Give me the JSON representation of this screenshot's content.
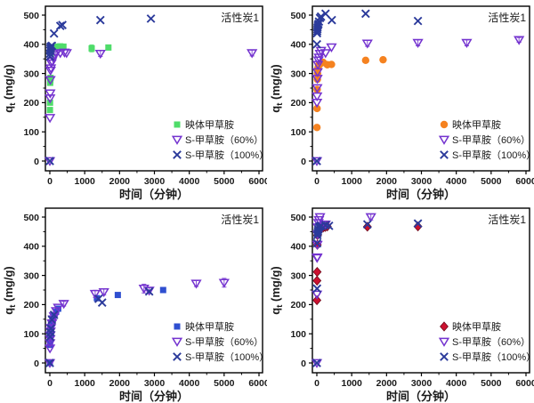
{
  "figure": {
    "background": "#ffffff"
  },
  "chart_data": [
    {
      "id": "top-left",
      "type": "scatter",
      "title": "活性炭1",
      "xlabel": "时间（分钟）",
      "ylabel": "q_t (mg/g)",
      "xlim": [
        0,
        6000
      ],
      "ylim": [
        0,
        500
      ],
      "xticks": [
        0,
        1000,
        2000,
        3000,
        4000,
        5000,
        6000
      ],
      "yticks": [
        0,
        100,
        200,
        300,
        400,
        500
      ],
      "x_minor_step": 500,
      "y_minor_step": 50,
      "grid": false,
      "legend_position": "bottom-right",
      "series": [
        {
          "name": "映体甲草胺",
          "marker": "square",
          "color": "#4fdc6a",
          "points": [
            [
              3,
              175
            ],
            [
              6,
              200
            ],
            [
              10,
              268
            ],
            [
              15,
              278
            ],
            [
              20,
              285
            ],
            [
              30,
              370
            ],
            [
              45,
              380
            ],
            [
              60,
              385
            ],
            [
              90,
              388
            ],
            [
              120,
              390
            ],
            [
              240,
              392
            ],
            [
              300,
              393
            ],
            [
              390,
              392
            ],
            [
              1200,
              386,
              12
            ],
            [
              1680,
              389
            ]
          ]
        },
        {
          "name": "S-甲草胺（60%）",
          "marker": "triangle-open",
          "color": "#7433cf",
          "points": [
            [
              0,
              0
            ],
            [
              3,
              148
            ],
            [
              6,
              215
            ],
            [
              10,
              232
            ],
            [
              15,
              278
            ],
            [
              20,
              310
            ],
            [
              30,
              318
            ],
            [
              45,
              335
            ],
            [
              60,
              342
            ],
            [
              90,
              355
            ],
            [
              120,
              362
            ],
            [
              180,
              368
            ],
            [
              300,
              370
            ],
            [
              420,
              372
            ],
            [
              480,
              370
            ],
            [
              1450,
              368,
              10
            ],
            [
              5800,
              370,
              10
            ]
          ]
        },
        {
          "name": "S-甲草胺（100%）",
          "marker": "x",
          "color": "#2b3a9b",
          "points": [
            [
              0,
              0
            ],
            [
              3,
              358
            ],
            [
              6,
              368
            ],
            [
              10,
              378
            ],
            [
              15,
              385
            ],
            [
              20,
              390
            ],
            [
              30,
              393
            ],
            [
              60,
              395
            ],
            [
              120,
              437
            ],
            [
              300,
              463
            ],
            [
              360,
              466
            ],
            [
              1450,
              483
            ],
            [
              2900,
              488
            ]
          ]
        }
      ]
    },
    {
      "id": "top-right",
      "type": "scatter",
      "title": "活性炭1",
      "xlabel": "时间（分钟）",
      "ylabel": "q_t (mg/g)",
      "xlim": [
        0,
        6000
      ],
      "ylim": [
        0,
        500
      ],
      "xticks": [
        0,
        1000,
        2000,
        3000,
        4000,
        5000,
        6000
      ],
      "yticks": [
        0,
        100,
        200,
        300,
        400,
        500
      ],
      "x_minor_step": 500,
      "y_minor_step": 50,
      "grid": false,
      "legend_position": "bottom-right",
      "series": [
        {
          "name": "映体甲草胺",
          "marker": "circle",
          "color": "#f58220",
          "points": [
            [
              3,
              115
            ],
            [
              6,
              180
            ],
            [
              10,
              245
            ],
            [
              15,
              280
            ],
            [
              20,
              300
            ],
            [
              30,
              318
            ],
            [
              45,
              325
            ],
            [
              60,
              330
            ],
            [
              90,
              333
            ],
            [
              120,
              335
            ],
            [
              180,
              338
            ],
            [
              300,
              330
            ],
            [
              420,
              331
            ],
            [
              1400,
              345,
              8
            ],
            [
              1900,
              347
            ]
          ]
        },
        {
          "name": "S-甲草胺（60%）",
          "marker": "triangle-open",
          "color": "#7433cf",
          "points": [
            [
              0,
              0
            ],
            [
              3,
              200
            ],
            [
              6,
              222
            ],
            [
              10,
              250
            ],
            [
              15,
              282
            ],
            [
              20,
              305
            ],
            [
              30,
              330
            ],
            [
              45,
              345
            ],
            [
              60,
              355
            ],
            [
              90,
              368
            ],
            [
              120,
              378
            ],
            [
              250,
              370
            ],
            [
              420,
              390
            ],
            [
              1450,
              403,
              10
            ],
            [
              2900,
              405,
              10
            ],
            [
              4300,
              405,
              10
            ],
            [
              5800,
              415,
              8
            ]
          ]
        },
        {
          "name": "S-甲草胺（100%）",
          "marker": "x",
          "color": "#2b3a9b",
          "points": [
            [
              0,
              0
            ],
            [
              3,
              400
            ],
            [
              6,
              438
            ],
            [
              10,
              445
            ],
            [
              15,
              452
            ],
            [
              20,
              458
            ],
            [
              30,
              465
            ],
            [
              45,
              470
            ],
            [
              60,
              478
            ],
            [
              90,
              490
            ],
            [
              120,
              495
            ],
            [
              250,
              505
            ],
            [
              430,
              483
            ],
            [
              1400,
              505
            ],
            [
              2900,
              480
            ]
          ]
        }
      ]
    },
    {
      "id": "bottom-left",
      "type": "scatter",
      "title": "活性炭1",
      "xlabel": "时间（分钟）",
      "ylabel": "q_t (mg/g)",
      "xlim": [
        0,
        6000
      ],
      "ylim": [
        0,
        500
      ],
      "xticks": [
        0,
        1000,
        2000,
        3000,
        4000,
        5000,
        6000
      ],
      "yticks": [
        0,
        100,
        200,
        300,
        400,
        500
      ],
      "x_minor_step": 500,
      "y_minor_step": 50,
      "grid": false,
      "legend_position": "bottom-right",
      "series": [
        {
          "name": "映体甲草胺",
          "marker": "square",
          "color": "#2f4fd0",
          "points": [
            [
              0,
              0
            ],
            [
              3,
              62
            ],
            [
              6,
              75
            ],
            [
              10,
              88
            ],
            [
              15,
              100
            ],
            [
              20,
              112
            ],
            [
              30,
              125
            ],
            [
              60,
              140
            ],
            [
              90,
              152
            ],
            [
              120,
              163
            ],
            [
              180,
              175
            ],
            [
              240,
              186
            ],
            [
              1350,
              222
            ],
            [
              1950,
              233
            ],
            [
              3250,
              250
            ]
          ]
        },
        {
          "name": "S-甲草胺（60%）",
          "marker": "triangle-open",
          "color": "#7433cf",
          "points": [
            [
              0,
              0
            ],
            [
              3,
              50
            ],
            [
              6,
              68
            ],
            [
              10,
              82
            ],
            [
              15,
              95
            ],
            [
              20,
              108
            ],
            [
              30,
              120
            ],
            [
              60,
              136
            ],
            [
              90,
              150
            ],
            [
              120,
              160
            ],
            [
              180,
              178
            ],
            [
              240,
              190
            ],
            [
              400,
              203,
              8
            ],
            [
              1300,
              237,
              12
            ],
            [
              1550,
              243,
              10
            ],
            [
              2700,
              255,
              15
            ],
            [
              2850,
              248,
              10
            ],
            [
              4200,
              272,
              10
            ],
            [
              5000,
              275,
              15
            ]
          ]
        },
        {
          "name": "S-甲草胺（100%）",
          "marker": "x",
          "color": "#2b3a9b",
          "points": [
            [
              0,
              0
            ],
            [
              10,
              90
            ],
            [
              20,
              105
            ],
            [
              30,
              118
            ],
            [
              60,
              148
            ],
            [
              120,
              165
            ],
            [
              1400,
              220
            ],
            [
              1500,
              207
            ],
            [
              2850,
              245
            ]
          ]
        }
      ]
    },
    {
      "id": "bottom-right",
      "type": "scatter",
      "title": "活性炭1",
      "xlabel": "时间（分钟）",
      "ylabel": "q_t (mg/g)",
      "xlim": [
        0,
        6000
      ],
      "ylim": [
        0,
        500
      ],
      "xticks": [
        0,
        1000,
        2000,
        3000,
        4000,
        5000,
        6000
      ],
      "yticks": [
        0,
        100,
        200,
        300,
        400,
        500
      ],
      "x_minor_step": 500,
      "y_minor_step": 50,
      "grid": false,
      "legend_position": "bottom-right",
      "series": [
        {
          "name": "映体甲草胺",
          "marker": "diamond",
          "color": "#cc1230",
          "points": [
            [
              3,
              215
            ],
            [
              6,
              282
            ],
            [
              10,
              312
            ],
            [
              15,
              405
            ],
            [
              20,
              438
            ],
            [
              30,
              448
            ],
            [
              45,
              455
            ],
            [
              60,
              458
            ],
            [
              90,
              460
            ],
            [
              120,
              462
            ],
            [
              180,
              464
            ],
            [
              240,
              466
            ],
            [
              300,
              468
            ],
            [
              1450,
              467
            ],
            [
              2900,
              468
            ]
          ]
        },
        {
          "name": "S-甲草胺（60%）",
          "marker": "triangle-open",
          "color": "#7433cf",
          "points": [
            [
              0,
              0
            ],
            [
              3,
              235
            ],
            [
              6,
              360
            ],
            [
              10,
              362
            ],
            [
              15,
              405
            ],
            [
              20,
              440
            ],
            [
              30,
              465
            ],
            [
              45,
              480
            ],
            [
              60,
              490
            ],
            [
              90,
              500
            ],
            [
              120,
              470
            ],
            [
              250,
              475
            ],
            [
              1550,
              500,
              10
            ]
          ]
        },
        {
          "name": "S-甲草胺（100%）",
          "marker": "x",
          "color": "#2b3a9b",
          "points": [
            [
              0,
              0
            ],
            [
              6,
              255
            ],
            [
              10,
              410
            ],
            [
              15,
              438
            ],
            [
              20,
              445
            ],
            [
              30,
              452
            ],
            [
              45,
              458
            ],
            [
              60,
              465
            ],
            [
              90,
              468
            ],
            [
              120,
              470
            ],
            [
              250,
              472
            ],
            [
              350,
              470
            ],
            [
              1450,
              475
            ],
            [
              2900,
              478
            ]
          ]
        }
      ]
    }
  ],
  "style": {
    "axis_color": "#000000",
    "text_color": "#1a1a1a",
    "triangle_fill": "none"
  }
}
